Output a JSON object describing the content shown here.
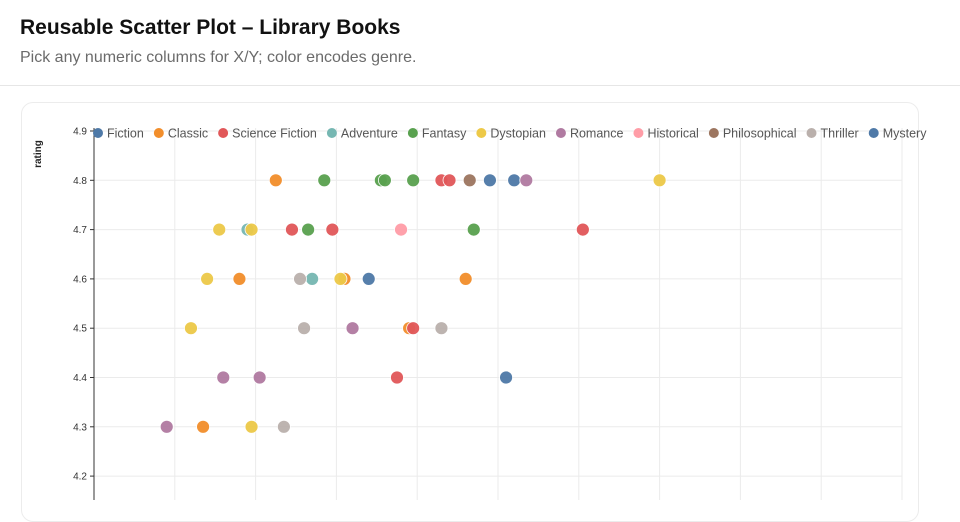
{
  "header": {
    "title": "Reusable Scatter Plot – Library Books",
    "subtitle": "Pick any numeric columns for X/Y; color encodes genre."
  },
  "chart_data": {
    "type": "scatter",
    "ylabel": "rating",
    "xlabel": "",
    "grid": true,
    "legend_position": "top",
    "y_ticks": [
      "4.9",
      "4.8",
      "4.7",
      "4.6",
      "4.5",
      "4.4",
      "4.3",
      "4.2"
    ],
    "ylim": [
      4.2,
      4.9
    ],
    "xlim": [
      0,
      10
    ],
    "series": [
      {
        "name": "Fiction",
        "color": "#4e79a7",
        "points": [
          [
            3.4,
            4.6
          ],
          [
            4.9,
            4.8
          ],
          [
            5.2,
            4.8
          ],
          [
            5.1,
            4.4
          ]
        ]
      },
      {
        "name": "Classic",
        "color": "#f28e2b",
        "points": [
          [
            2.25,
            4.8
          ],
          [
            1.8,
            4.6
          ],
          [
            3.1,
            4.6
          ],
          [
            4.6,
            4.6
          ],
          [
            3.9,
            4.5
          ],
          [
            1.35,
            4.3
          ]
        ]
      },
      {
        "name": "Science Fiction",
        "color": "#e15759",
        "points": [
          [
            2.45,
            4.7
          ],
          [
            2.95,
            4.7
          ],
          [
            6.05,
            4.7
          ],
          [
            4.3,
            4.8
          ],
          [
            4.4,
            4.8
          ],
          [
            3.95,
            4.5
          ],
          [
            3.75,
            4.4
          ]
        ]
      },
      {
        "name": "Adventure",
        "color": "#76b7b2",
        "points": [
          [
            1.9,
            4.7
          ],
          [
            2.7,
            4.6
          ]
        ]
      },
      {
        "name": "Fantasy",
        "color": "#59a14f",
        "points": [
          [
            2.85,
            4.8
          ],
          [
            3.55,
            4.8
          ],
          [
            3.6,
            4.8
          ],
          [
            3.95,
            4.8
          ],
          [
            2.65,
            4.7
          ],
          [
            4.7,
            4.7
          ]
        ]
      },
      {
        "name": "Dystopian",
        "color": "#edc948",
        "points": [
          [
            7.0,
            4.8
          ],
          [
            1.55,
            4.7
          ],
          [
            1.95,
            4.7
          ],
          [
            1.4,
            4.6
          ],
          [
            3.05,
            4.6
          ],
          [
            1.2,
            4.5
          ],
          [
            1.95,
            4.3
          ]
        ]
      },
      {
        "name": "Romance",
        "color": "#b07aa1",
        "points": [
          [
            5.35,
            4.8
          ],
          [
            3.2,
            4.5
          ],
          [
            1.6,
            4.4
          ],
          [
            2.05,
            4.4
          ],
          [
            0.9,
            4.3
          ]
        ]
      },
      {
        "name": "Historical",
        "color": "#ff9da7",
        "points": [
          [
            3.8,
            4.7
          ]
        ]
      },
      {
        "name": "Philosophical",
        "color": "#9c755f",
        "points": [
          [
            4.65,
            4.8
          ]
        ]
      },
      {
        "name": "Thriller",
        "color": "#bab0ac",
        "points": [
          [
            2.55,
            4.6
          ],
          [
            2.6,
            4.5
          ],
          [
            4.3,
            4.5
          ],
          [
            2.35,
            4.3
          ]
        ]
      },
      {
        "name": "Mystery",
        "color": "#4e79a7",
        "points": []
      }
    ]
  }
}
